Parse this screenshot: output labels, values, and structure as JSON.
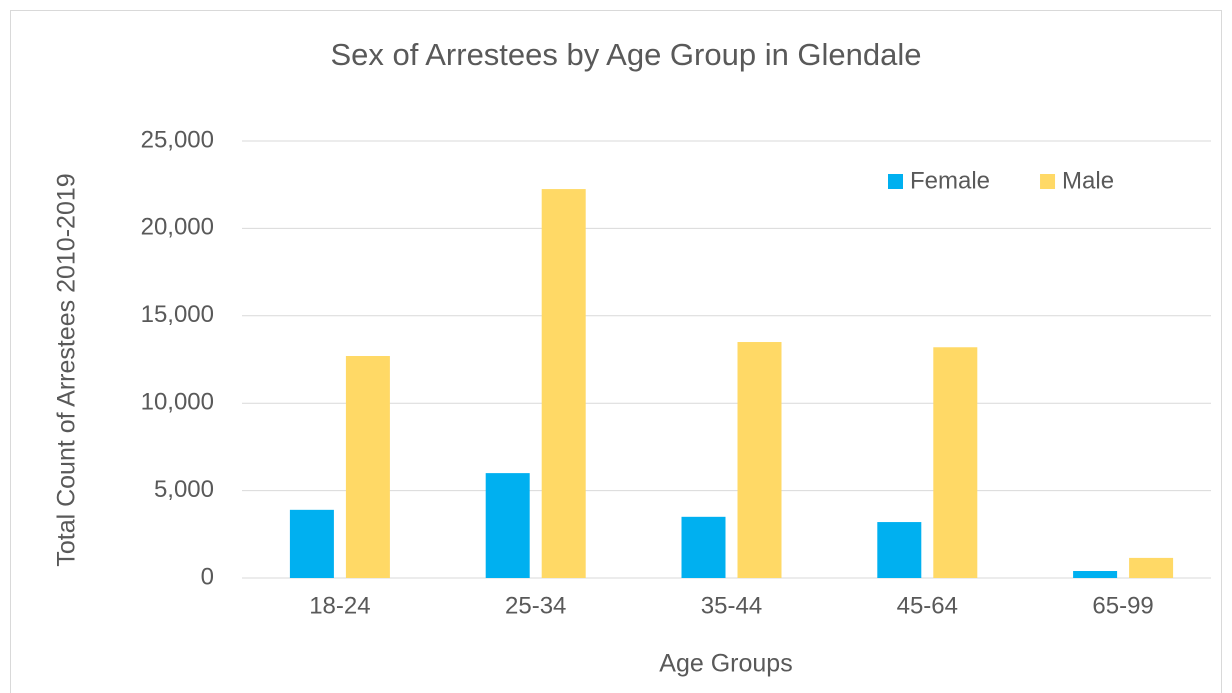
{
  "chart_data": {
    "type": "bar",
    "title": "Sex of Arrestees by Age Group in Glendale",
    "x_label": "Age Groups",
    "y_label": "Total Count of Arrestees 2010-2019",
    "categories": [
      "18-24",
      "25-34",
      "35-44",
      "45-64",
      "65-99"
    ],
    "series": [
      {
        "name": "Female",
        "color": "#00b0f0",
        "values": [
          3900,
          6000,
          3500,
          3200,
          400
        ]
      },
      {
        "name": "Male",
        "color": "#ffd966",
        "values": [
          12700,
          22250,
          13500,
          13200,
          1150
        ]
      }
    ],
    "ylim": [
      0,
      25000
    ],
    "yticks": [
      0,
      {
        "value": 5000,
        "label": "5,000"
      },
      {
        "value": 10000,
        "label": "10,000"
      },
      {
        "value": 15000,
        "label": "15,000"
      },
      {
        "value": 20000,
        "label": "20,000"
      },
      {
        "value": 25000,
        "label": "25,000"
      }
    ],
    "grid": true,
    "legend": "top-right"
  }
}
